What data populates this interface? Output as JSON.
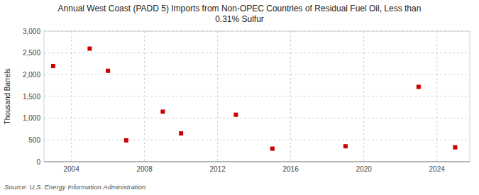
{
  "chart_data": {
    "type": "scatter",
    "title": "Annual West Coast (PADD 5) Imports from Non-OPEC Countries of Residual Fuel Oil, Less than\n0.31% Sulfur",
    "y_label": "Thousand Barrels",
    "source": "Source: U.S. Energy Information Administration",
    "x": [
      2003,
      2005,
      2006,
      2007,
      2009,
      2010,
      2013,
      2015,
      2019,
      2023,
      2025
    ],
    "values": [
      2200,
      2600,
      2090,
      490,
      1150,
      650,
      1080,
      300,
      355,
      1720,
      330
    ],
    "color": "#cc0000",
    "marker": "square",
    "xlim": [
      2002.5,
      2025.8
    ],
    "ylim": [
      0,
      3000
    ],
    "xticks": [
      2004,
      2008,
      2012,
      2016,
      2020,
      2024
    ],
    "yticks": [
      0,
      500,
      {
        "value": 1000,
        "label": "1,000"
      },
      {
        "value": 1500,
        "label": "1,500"
      },
      {
        "value": 2000,
        "label": "2,000"
      },
      {
        "value": 2500,
        "label": "2,500"
      },
      {
        "value": 3000,
        "label": "3,000"
      }
    ],
    "grid": true
  }
}
